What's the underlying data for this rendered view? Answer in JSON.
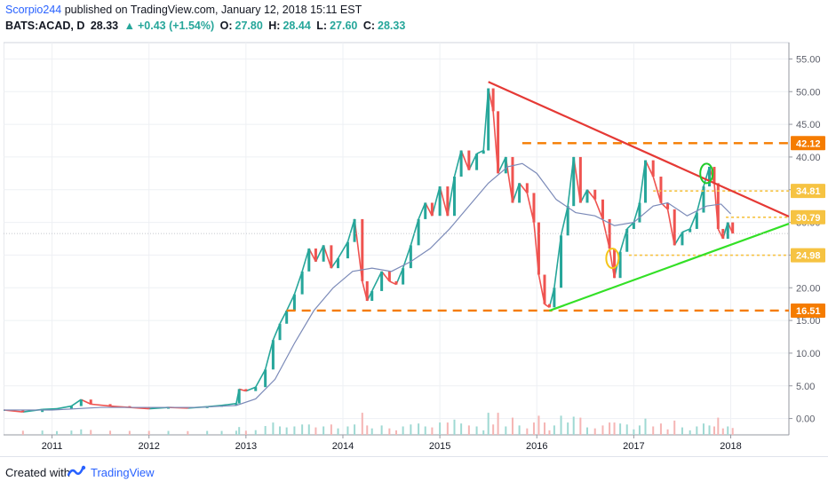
{
  "header": {
    "author": "Scorpio244",
    "published": "published on TradingView.com, January 12, 2018 15:11 EST",
    "symbol": "BATS:ACAD, D",
    "last": "28.33",
    "change": "+0.43 (+1.54%)",
    "open_label": "O:",
    "open": "27.80",
    "high_label": "H:",
    "high": "28.44",
    "low_label": "L:",
    "low": "27.60",
    "close_label": "C:",
    "close": "28.33"
  },
  "footer": {
    "created": "Created with",
    "brand": "TradingView"
  },
  "chart_data": {
    "type": "line",
    "title": "",
    "xlabel": "",
    "ylabel": "",
    "x_ticks": [
      "2011",
      "2012",
      "2013",
      "2014",
      "2015",
      "2016",
      "2017",
      "2018"
    ],
    "y_ticks": [
      "55.00",
      "50.00",
      "45.00",
      "40.00",
      "35.00",
      "30.00",
      "25.00",
      "20.00",
      "15.00",
      "10.00",
      "5.00",
      "0.00"
    ],
    "ylim": [
      -2.5,
      57.5
    ],
    "xlim": [
      2010.5,
      2018.6
    ],
    "grid": true,
    "price_labels": [
      {
        "value": 42.12,
        "text": "42.12",
        "color": "#f57c00"
      },
      {
        "value": 34.81,
        "text": "34.81",
        "color": "#f6c342"
      },
      {
        "value": 30.79,
        "text": "30.79",
        "color": "#f6c342"
      },
      {
        "value": 24.98,
        "text": "24.98",
        "color": "#f6c342"
      },
      {
        "value": 16.51,
        "text": "16.51",
        "color": "#f57c00"
      }
    ],
    "series": [
      {
        "kind": "candles",
        "points": [
          [
            2010.5,
            1.3
          ],
          [
            2010.7,
            1.0
          ],
          [
            2010.9,
            1.4
          ],
          [
            2011.05,
            1.5
          ],
          [
            2011.2,
            1.9
          ],
          [
            2011.3,
            2.9
          ],
          [
            2011.4,
            2.2
          ],
          [
            2011.6,
            1.9
          ],
          [
            2011.8,
            1.7
          ],
          [
            2012.0,
            1.5
          ],
          [
            2012.2,
            1.7
          ],
          [
            2012.4,
            1.6
          ],
          [
            2012.6,
            1.8
          ],
          [
            2012.75,
            2.0
          ],
          [
            2012.9,
            2.3
          ],
          [
            2012.93,
            4.5
          ],
          [
            2013.0,
            4.2
          ],
          [
            2013.1,
            4.8
          ],
          [
            2013.2,
            7.5
          ],
          [
            2013.28,
            12.0
          ],
          [
            2013.35,
            14.5
          ],
          [
            2013.42,
            16.5
          ],
          [
            2013.5,
            19.0
          ],
          [
            2013.58,
            22.5
          ],
          [
            2013.65,
            26.0
          ],
          [
            2013.72,
            24.0
          ],
          [
            2013.8,
            26.5
          ],
          [
            2013.88,
            23.0
          ],
          [
            2013.95,
            24.5
          ],
          [
            2014.05,
            27.0
          ],
          [
            2014.12,
            30.5
          ],
          [
            2014.2,
            21.0
          ],
          [
            2014.25,
            18.0
          ],
          [
            2014.3,
            19.5
          ],
          [
            2014.4,
            22.5
          ],
          [
            2014.48,
            21.0
          ],
          [
            2014.55,
            20.5
          ],
          [
            2014.62,
            23.0
          ],
          [
            2014.7,
            26.5
          ],
          [
            2014.78,
            30.5
          ],
          [
            2014.85,
            33.0
          ],
          [
            2014.92,
            31.0
          ],
          [
            2015.0,
            35.5
          ],
          [
            2015.08,
            31.0
          ],
          [
            2015.15,
            37.0
          ],
          [
            2015.22,
            41.0
          ],
          [
            2015.3,
            38.0
          ],
          [
            2015.38,
            40.5
          ],
          [
            2015.45,
            41.0
          ],
          [
            2015.5,
            50.5
          ],
          [
            2015.55,
            47.0
          ],
          [
            2015.6,
            37.5
          ],
          [
            2015.68,
            40.0
          ],
          [
            2015.75,
            33.0
          ],
          [
            2015.82,
            36.0
          ],
          [
            2015.9,
            34.5
          ],
          [
            2015.97,
            30.0
          ],
          [
            2016.02,
            22.0
          ],
          [
            2016.08,
            17.5
          ],
          [
            2016.13,
            17.0
          ],
          [
            2016.18,
            20.0
          ],
          [
            2016.25,
            28.0
          ],
          [
            2016.32,
            32.5
          ],
          [
            2016.38,
            40.0
          ],
          [
            2016.45,
            33.0
          ],
          [
            2016.52,
            35.0
          ],
          [
            2016.6,
            33.5
          ],
          [
            2016.68,
            30.5
          ],
          [
            2016.75,
            26.0
          ],
          [
            2016.8,
            21.5
          ],
          [
            2016.86,
            25.5
          ],
          [
            2016.93,
            29.0
          ],
          [
            2017.0,
            30.0
          ],
          [
            2017.06,
            33.0
          ],
          [
            2017.12,
            39.5
          ],
          [
            2017.2,
            37.0
          ],
          [
            2017.28,
            33.0
          ],
          [
            2017.35,
            32.0
          ],
          [
            2017.42,
            26.5
          ],
          [
            2017.5,
            28.5
          ],
          [
            2017.58,
            29.0
          ],
          [
            2017.65,
            31.5
          ],
          [
            2017.72,
            35.5
          ],
          [
            2017.78,
            38.5
          ],
          [
            2017.83,
            36.0
          ],
          [
            2017.87,
            29.0
          ],
          [
            2017.92,
            27.5
          ],
          [
            2017.97,
            30.0
          ],
          [
            2018.02,
            28.3
          ]
        ]
      },
      {
        "kind": "moving-average",
        "points": [
          [
            2010.5,
            1.3
          ],
          [
            2011.0,
            1.3
          ],
          [
            2011.5,
            1.7
          ],
          [
            2012.0,
            1.7
          ],
          [
            2012.5,
            1.7
          ],
          [
            2012.9,
            2.0
          ],
          [
            2013.1,
            3.0
          ],
          [
            2013.3,
            6.0
          ],
          [
            2013.5,
            11.5
          ],
          [
            2013.7,
            16.5
          ],
          [
            2013.9,
            20.0
          ],
          [
            2014.1,
            22.5
          ],
          [
            2014.3,
            23.0
          ],
          [
            2014.5,
            22.5
          ],
          [
            2014.7,
            24.0
          ],
          [
            2014.9,
            26.0
          ],
          [
            2015.1,
            29.0
          ],
          [
            2015.3,
            32.5
          ],
          [
            2015.5,
            36.0
          ],
          [
            2015.7,
            38.5
          ],
          [
            2015.85,
            39.0
          ],
          [
            2016.0,
            37.5
          ],
          [
            2016.2,
            33.5
          ],
          [
            2016.4,
            31.5
          ],
          [
            2016.6,
            31.0
          ],
          [
            2016.8,
            29.5
          ],
          [
            2017.0,
            30.0
          ],
          [
            2017.2,
            32.5
          ],
          [
            2017.35,
            33.0
          ],
          [
            2017.55,
            31.0
          ],
          [
            2017.75,
            32.5
          ],
          [
            2017.9,
            32.8
          ],
          [
            2018.0,
            31.3
          ]
        ]
      },
      {
        "kind": "trendline-down",
        "points": [
          [
            2015.5,
            51.5
          ],
          [
            2018.6,
            30.9
          ]
        ]
      },
      {
        "kind": "trendline-up",
        "points": [
          [
            2016.13,
            16.5
          ],
          [
            2018.6,
            29.8
          ]
        ]
      },
      {
        "kind": "resistance",
        "points": [
          [
            2015.85,
            42.12
          ],
          [
            2018.6,
            42.12
          ]
        ]
      },
      {
        "kind": "support",
        "points": [
          [
            2013.42,
            16.51
          ],
          [
            2018.6,
            16.51
          ]
        ]
      },
      {
        "kind": "level",
        "points": [
          [
            2017.2,
            34.81
          ],
          [
            2018.6,
            34.81
          ]
        ]
      },
      {
        "kind": "level",
        "points": [
          [
            2017.95,
            30.79
          ],
          [
            2018.6,
            30.79
          ]
        ]
      },
      {
        "kind": "level",
        "points": [
          [
            2016.95,
            24.98
          ],
          [
            2018.6,
            24.98
          ]
        ]
      }
    ],
    "annotations": [
      {
        "kind": "ellipse",
        "x": 2016.78,
        "y": 24.5,
        "color": "#f5c518"
      },
      {
        "kind": "ellipse",
        "x": 2017.75,
        "y": 37.5,
        "color": "#1fcb2a"
      }
    ],
    "colors": {
      "down_trend": "#e53935",
      "up_trend": "#33e026",
      "resistance": "#f57c00",
      "support": "#f57c00",
      "level": "#f6c342",
      "ma": "#7b8ab8",
      "candle_up": "#26a69a",
      "candle_down": "#ef5350"
    }
  }
}
